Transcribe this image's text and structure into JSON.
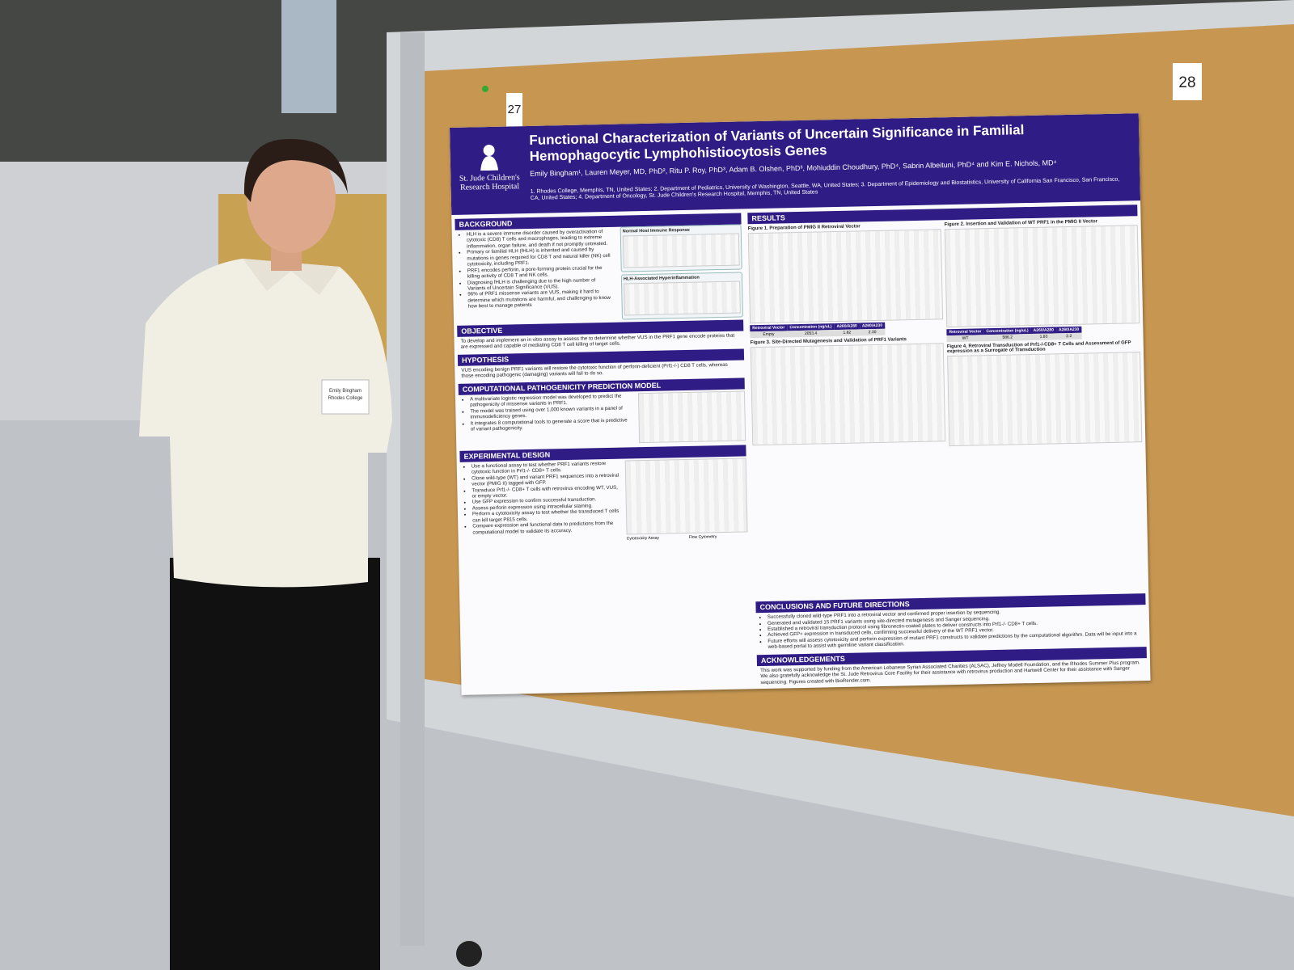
{
  "board_numbers": [
    "27",
    "28"
  ],
  "badge": {
    "name": "Emily Bingham",
    "school": "Rhodes College"
  },
  "poster": {
    "logo": "St. Jude Children's Research Hospital",
    "title": "Functional Characterization of Variants of Uncertain Significance in Familial Hemophagocytic Lymphohistiocytosis Genes",
    "authors": "Emily Bingham¹, Lauren Meyer, MD, PhD², Ritu P. Roy, PhD³, Adam B. Olshen, PhD³, Mohiuddin Choudhury, PhD⁴, Sabrin Albeituni, PhD⁴ and Kim E. Nichols, MD⁴",
    "affiliations": "1. Rhodes College, Memphis, TN, United States; 2. Department of Pediatrics, University of Washington, Seattle, WA, United States; 3. Department of Epidemiology and Biostatistics, University of California San Francisco, San Francisco, CA, United States; 4. Department of Oncology, St. Jude Children's Research Hospital, Memphis, TN, United States",
    "background": {
      "heading": "BACKGROUND",
      "bullets": [
        "HLH is a severe immune disorder caused by overactivation of cytotoxic (CD8) T cells and macrophages, leading to extreme inflammation, organ failure, and death if not promptly untreated.",
        "Primary or familial HLH (fHLH) is inherited and caused by mutations in genes required for CD8 T and natural killer (NK) cell cytotoxicity, including PRF1.",
        "PRF1 encodes perforin, a pore-forming protein crucial for the killing activity of CD8 T and NK cells.",
        "Diagnosing fHLH is challenging due to the high number of Variants of Uncertain Significance (VUS).",
        "96% of PRF1 missense variants are VUS, making it hard to determine which mutations are harmful, and challenging to know how best to manage patients"
      ],
      "figures": [
        "Normal Host Immune Response",
        "HLH-Associated Hyperinflammation"
      ]
    },
    "objective": {
      "heading": "OBJECTIVE",
      "text": "To develop and implement an in vitro assay to assess the to determine whether VUS in the PRF1 gene encode proteins that are expressed and capable of mediating CD8 T cell killing of target cells."
    },
    "hypothesis": {
      "heading": "HYPOTHESIS",
      "text": "VUS encoding benign PRF1 variants will restore the cytotoxic function of perforin-deficient (Prf1-/-) CD8 T cells, whereas those encoding pathogenic (damaging) variants will fail to do so."
    },
    "computational": {
      "heading": "COMPUTATIONAL PATHOGENICITY PREDICTION MODEL",
      "bullets": [
        "A multivariate logistic regression model was developed to predict the pathogenicity of missense variants in PRF1.",
        "The model was trained using over 1,000 known variants in a panel of immunodeficiency genes.",
        "It integrates 8 computational tools to generate a score that is predictive of variant pathogenicity."
      ]
    },
    "design": {
      "heading": "EXPERIMENTAL DESIGN",
      "bullets": [
        "Use a functional assay to test whether PRF1 variants restore cytotoxic function in Prf1-/- CD8+ T cells.",
        "Clone wild-type (WT) and variant PRF1 sequences into a retroviral vector (PMIG II) tagged with GFP.",
        "Transduce Prf1-/- CD8+ T cells with retrovirus encoding WT, VUS, or empty vector.",
        "Use GFP expression to confirm successful transduction.",
        "Assess perforin expression using intracellular staining.",
        "Perform a cytotoxicity assay to test whether the transduced T cells can kill target P815 cells.",
        "Compare expression and functional data to predictions from the computational model to validate its accuracy."
      ],
      "figure_labels": [
        "Cytotoxicity Assay",
        "Flow Cytometry"
      ]
    },
    "results": {
      "heading": "RESULTS",
      "figures": [
        "Figure 1. Preparation of PMIG II Retroviral Vector",
        "Figure 2. Insertion and Validation of WT PRF1 in the PMIG II Vector",
        "Figure 3. Site-Directed Mutagenesis and Validation of PRF1 Variants",
        "Figure 4. Retroviral Transduction of Prf1-/-CD8+ T Cells and Assessment of GFP expression as a Surrogate of Transduction"
      ],
      "table_header": [
        "Retroviral Vector",
        "Concentration (ng/uL)",
        "A260/A280",
        "A260/A230"
      ],
      "table_rows": [
        [
          "Empty",
          "2053.4",
          "1.82",
          "2.30"
        ],
        [
          "WT",
          "586.2",
          "1.83",
          "2.2"
        ]
      ]
    },
    "conclusions": {
      "heading": "CONCLUSIONS AND FUTURE DIRECTIONS",
      "bullets": [
        "Successfully cloned wild-type PRF1 into a retroviral vector and confirmed proper insertion by sequencing.",
        "Generated and validated 15 PRF1 variants using site-directed mutagenesis and Sanger sequencing.",
        "Established a retroviral transduction protocol using fibronectin-coated plates to deliver constructs into Prf1-/- CD8+ T cells.",
        "Achieved GFP+ expression in transduced cells, confirming successful delivery of the WT PRF1 vector.",
        "Future efforts will assess cytotoxicity and perforin expression of mutant PRF1 constructs to validate predictions by the computational algorithm. Data will be input into a web-based portal to assist with germline variant classification."
      ]
    },
    "acknowledgements": {
      "heading": "ACKNOWLEDGEMENTS",
      "text": "This work was supported by funding from the American Lebanese Syrian Associated Charities (ALSAC), Jeffrey Modell Foundation, and the Rhodes Summer Plus program. We also gratefully acknowledge the St. Jude Retrovirus Core Facility for their assistance with retrovirus production and Hartwell Center for their assistance with Sanger sequencing. Figures created with BioRender.com."
    }
  }
}
